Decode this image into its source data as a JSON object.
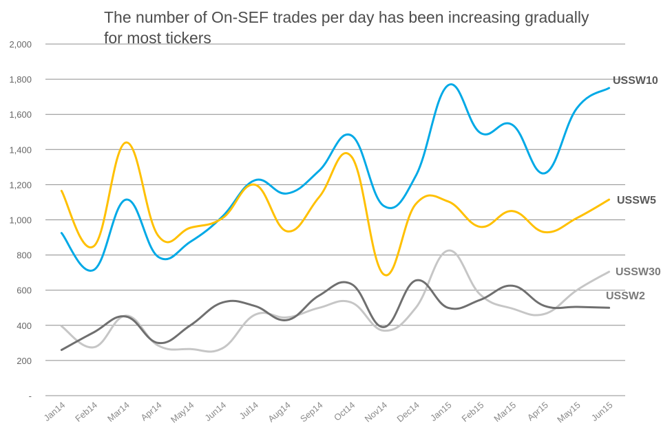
{
  "chart_data": {
    "type": "line",
    "title": "The number of On-SEF trades per day has been increasing gradually  for most tickers",
    "categories": [
      "Jan14",
      "Feb14",
      "Mar14",
      "Apr14",
      "May14",
      "Jun14",
      "Jul14",
      "Aug14",
      "Sep14",
      "Oct14",
      "Nov14",
      "Dec14",
      "Jan15",
      "Feb15",
      "Mar15",
      "Apr15",
      "May15",
      "Jun15"
    ],
    "ylim": [
      0,
      2000
    ],
    "yticks": [
      0,
      200,
      400,
      600,
      800,
      1000,
      1200,
      1400,
      1600,
      1800,
      2000
    ],
    "ytick_labels": [
      "-",
      "200",
      "400",
      "600",
      "800",
      "1,000",
      "1,200",
      "1,400",
      "1,600",
      "1,800",
      "2,000"
    ],
    "grid": true,
    "series": [
      {
        "name": "USSW10",
        "color": "#00a9e6",
        "values": [
          925,
          715,
          1115,
          790,
          875,
          1020,
          1225,
          1150,
          1280,
          1480,
          1080,
          1250,
          1765,
          1495,
          1540,
          1265,
          1635,
          1750
        ]
      },
      {
        "name": "USSW5",
        "color": "#ffc000",
        "values": [
          1165,
          850,
          1440,
          910,
          955,
          1010,
          1200,
          935,
          1130,
          1360,
          690,
          1090,
          1105,
          960,
          1050,
          930,
          1010,
          1115
        ]
      },
      {
        "name": "USSW30",
        "color": "#c6c6c6",
        "values": [
          395,
          275,
          455,
          285,
          265,
          270,
          460,
          445,
          500,
          530,
          370,
          500,
          825,
          575,
          495,
          465,
          600,
          705
        ]
      },
      {
        "name": "USSW2",
        "color": "#6f6f6f",
        "values": [
          260,
          360,
          450,
          300,
          400,
          530,
          510,
          430,
          570,
          635,
          390,
          655,
          500,
          545,
          625,
          510,
          505,
          500
        ]
      }
    ]
  }
}
